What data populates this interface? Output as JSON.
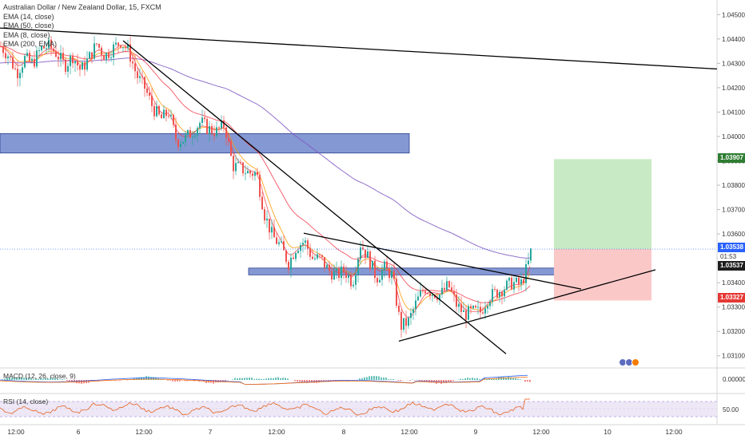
{
  "chart_title": "Australian Dollar / New Zealand Dollar, 15, FXCM",
  "indicators": [
    "EMA (14, close)",
    "EMA (50, close)",
    "EMA (8, close)",
    "EMA (200, EMA)"
  ],
  "macd_label": "MACD (12, 26, close, 9)",
  "rsi_label": "RSI (14, close)",
  "price_tags": {
    "target": "1.03907",
    "current": "1.03538",
    "countdown": "01:53",
    "bid": "1.03537",
    "stop": "1.03327"
  },
  "macd_tick": "0.00000",
  "rsi_tick": "50.00",
  "colors": {
    "up": "#26a69a",
    "down": "#ef5350",
    "ema14": "#f23645",
    "ema50": "#ff9800",
    "ema8": "#2962ff",
    "ema200": "#7e57c2",
    "zone": "#5b76c4",
    "target_zone": "#c8eac5",
    "stop_zone": "#fbc8c8"
  },
  "chart_data": {
    "type": "candlestick",
    "title": "Australian Dollar / New Zealand Dollar, 15, FXCM",
    "y_ticks": [
      "1.04500",
      "1.04400",
      "1.04300",
      "1.04200",
      "1.04100",
      "1.04000",
      "1.03900",
      "1.03800",
      "1.03700",
      "1.03600",
      "1.03500",
      "1.03400",
      "1.03300",
      "1.03200",
      "1.03100"
    ],
    "x_ticks": [
      "12:00",
      "6",
      "12:00",
      "7",
      "12:00",
      "8",
      "12:00",
      "9",
      "12:00",
      "10",
      "12:00"
    ],
    "ylim": [
      1.0305,
      1.0456
    ],
    "close_path": [
      [
        0,
        1.0437
      ],
      [
        10,
        1.0433
      ],
      [
        20,
        1.0426
      ],
      [
        30,
        1.0432
      ],
      [
        40,
        1.043
      ],
      [
        50,
        1.0436
      ],
      [
        60,
        1.0437
      ],
      [
        70,
        1.0434
      ],
      [
        80,
        1.0429
      ],
      [
        90,
        1.0433
      ],
      [
        100,
        1.0427
      ],
      [
        110,
        1.0432
      ],
      [
        120,
        1.0438
      ],
      [
        130,
        1.0433
      ],
      [
        140,
        1.0436
      ],
      [
        150,
        1.0439
      ],
      [
        160,
        1.0435
      ],
      [
        170,
        1.0425
      ],
      [
        180,
        1.042
      ],
      [
        190,
        1.0412
      ],
      [
        200,
        1.0407
      ],
      [
        210,
        1.041
      ],
      [
        220,
        1.0398
      ],
      [
        230,
        1.0399
      ],
      [
        240,
        1.0402
      ],
      [
        250,
        1.0406
      ],
      [
        260,
        1.0403
      ],
      [
        270,
        1.0402
      ],
      [
        280,
        1.0405
      ],
      [
        290,
        1.0388
      ],
      [
        300,
        1.0387
      ],
      [
        310,
        1.0385
      ],
      [
        320,
        1.0385
      ],
      [
        330,
        1.0368
      ],
      [
        340,
        1.0359
      ],
      [
        350,
        1.0355
      ],
      [
        360,
        1.0348
      ],
      [
        370,
        1.0355
      ],
      [
        380,
        1.0357
      ],
      [
        390,
        1.035
      ],
      [
        400,
        1.035
      ],
      [
        410,
        1.0345
      ],
      [
        420,
        1.0343
      ],
      [
        430,
        1.0345
      ],
      [
        440,
        1.034
      ],
      [
        450,
        1.0356
      ],
      [
        460,
        1.035
      ],
      [
        470,
        1.0342
      ],
      [
        480,
        1.0346
      ],
      [
        490,
        1.0343
      ],
      [
        500,
        1.0322
      ],
      [
        510,
        1.0324
      ],
      [
        520,
        1.0332
      ],
      [
        530,
        1.0338
      ],
      [
        540,
        1.0336
      ],
      [
        550,
        1.0335
      ],
      [
        560,
        1.0339
      ],
      [
        570,
        1.0331
      ],
      [
        580,
        1.0327
      ],
      [
        590,
        1.0328
      ],
      [
        600,
        1.0328
      ],
      [
        610,
        1.0334
      ],
      [
        620,
        1.0336
      ],
      [
        630,
        1.0338
      ],
      [
        640,
        1.034
      ],
      [
        650,
        1.0339
      ],
      [
        655,
        1.0343
      ],
      [
        660,
        1.0348
      ],
      [
        664,
        1.0354
      ]
    ],
    "zones": [
      {
        "label": "supply",
        "x1": 0,
        "x2": 512,
        "y_top": 1.04012,
        "y_bot": 1.03932
      },
      {
        "label": "resistance",
        "x1": 311,
        "x2": 720,
        "y_top": 1.0346,
        "y_bot": 1.03432
      },
      {
        "label": "target",
        "x1": 693,
        "x2": 815,
        "y_top": 1.03907,
        "y_bot": 1.03538
      },
      {
        "label": "stop",
        "x1": 693,
        "x2": 815,
        "y_top": 1.03538,
        "y_bot": 1.03327
      }
    ],
    "lines": [
      {
        "x1": 0,
        "y1": 1.04445,
        "x2": 897,
        "y2": 1.04277
      },
      {
        "x1": 154,
        "y1": 1.04393,
        "x2": 633,
        "y2": 1.03108
      },
      {
        "x1": 380,
        "y1": 1.03603,
        "x2": 727,
        "y2": 1.03374
      },
      {
        "x1": 499,
        "y1": 1.0316,
        "x2": 820,
        "y2": 1.03453
      }
    ]
  }
}
